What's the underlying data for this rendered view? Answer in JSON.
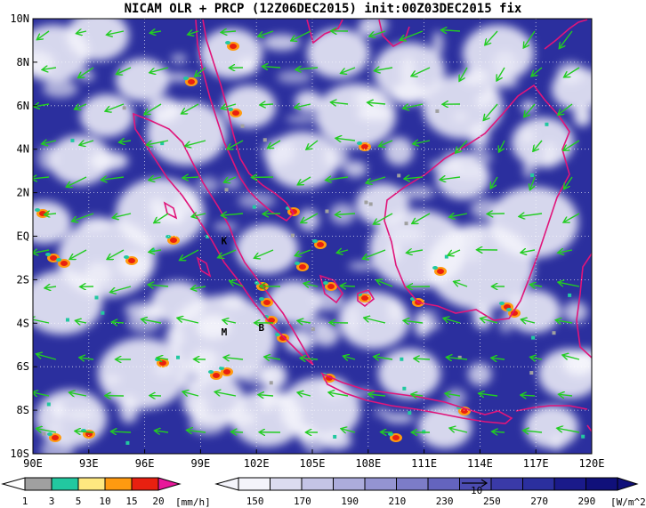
{
  "title": "NICAM OLR + PRCP (12Z06DEC2015) init:00Z03DEC2015 fix",
  "map": {
    "lon_range": [
      90,
      120
    ],
    "lat_range": [
      -10,
      10
    ],
    "lon_labels": [
      "90E",
      "93E",
      "96E",
      "99E",
      "102E",
      "105E",
      "108E",
      "111E",
      "114E",
      "117E",
      "120E"
    ],
    "lat_labels": [
      "10N",
      "8N",
      "6N",
      "4N",
      "2N",
      "EQ",
      "2S",
      "4S",
      "6S",
      "8S",
      "10S"
    ],
    "grid": "dotted",
    "colors": {
      "background": "#2b2f9e",
      "cloud": "#f4f4fb",
      "coastline": "#e0157a",
      "wind_vector": "#22cc22"
    },
    "place_markers": [
      {
        "label": "K",
        "lon": 100.3,
        "lat": -0.2
      },
      {
        "label": "M",
        "lon": 100.3,
        "lat": -4.4
      },
      {
        "label": "B",
        "lon": 102.3,
        "lat": -4.2
      }
    ]
  },
  "precip_colorbar": {
    "unit": "[mm/h]",
    "ticks": [
      "1",
      "3",
      "5",
      "10",
      "15",
      "20"
    ],
    "colors": [
      "#a0a0a0",
      "#22c8a0",
      "#ffe880",
      "#ff9a10",
      "#e82010",
      "#e8189a"
    ]
  },
  "olr_colorbar": {
    "unit": "[W/m^2]",
    "ticks": [
      "150",
      "170",
      "190",
      "210",
      "230",
      "250",
      "270",
      "290"
    ],
    "colors": [
      "#f4f4fb",
      "#dcdcf0",
      "#c4c4e6",
      "#acacdc",
      "#9494d2",
      "#7c7cc8",
      "#6464be",
      "#4c4cb2",
      "#3a3aa8",
      "#2b2f9e",
      "#1a1a8a",
      "#10107a"
    ],
    "reference_vector": "10"
  }
}
